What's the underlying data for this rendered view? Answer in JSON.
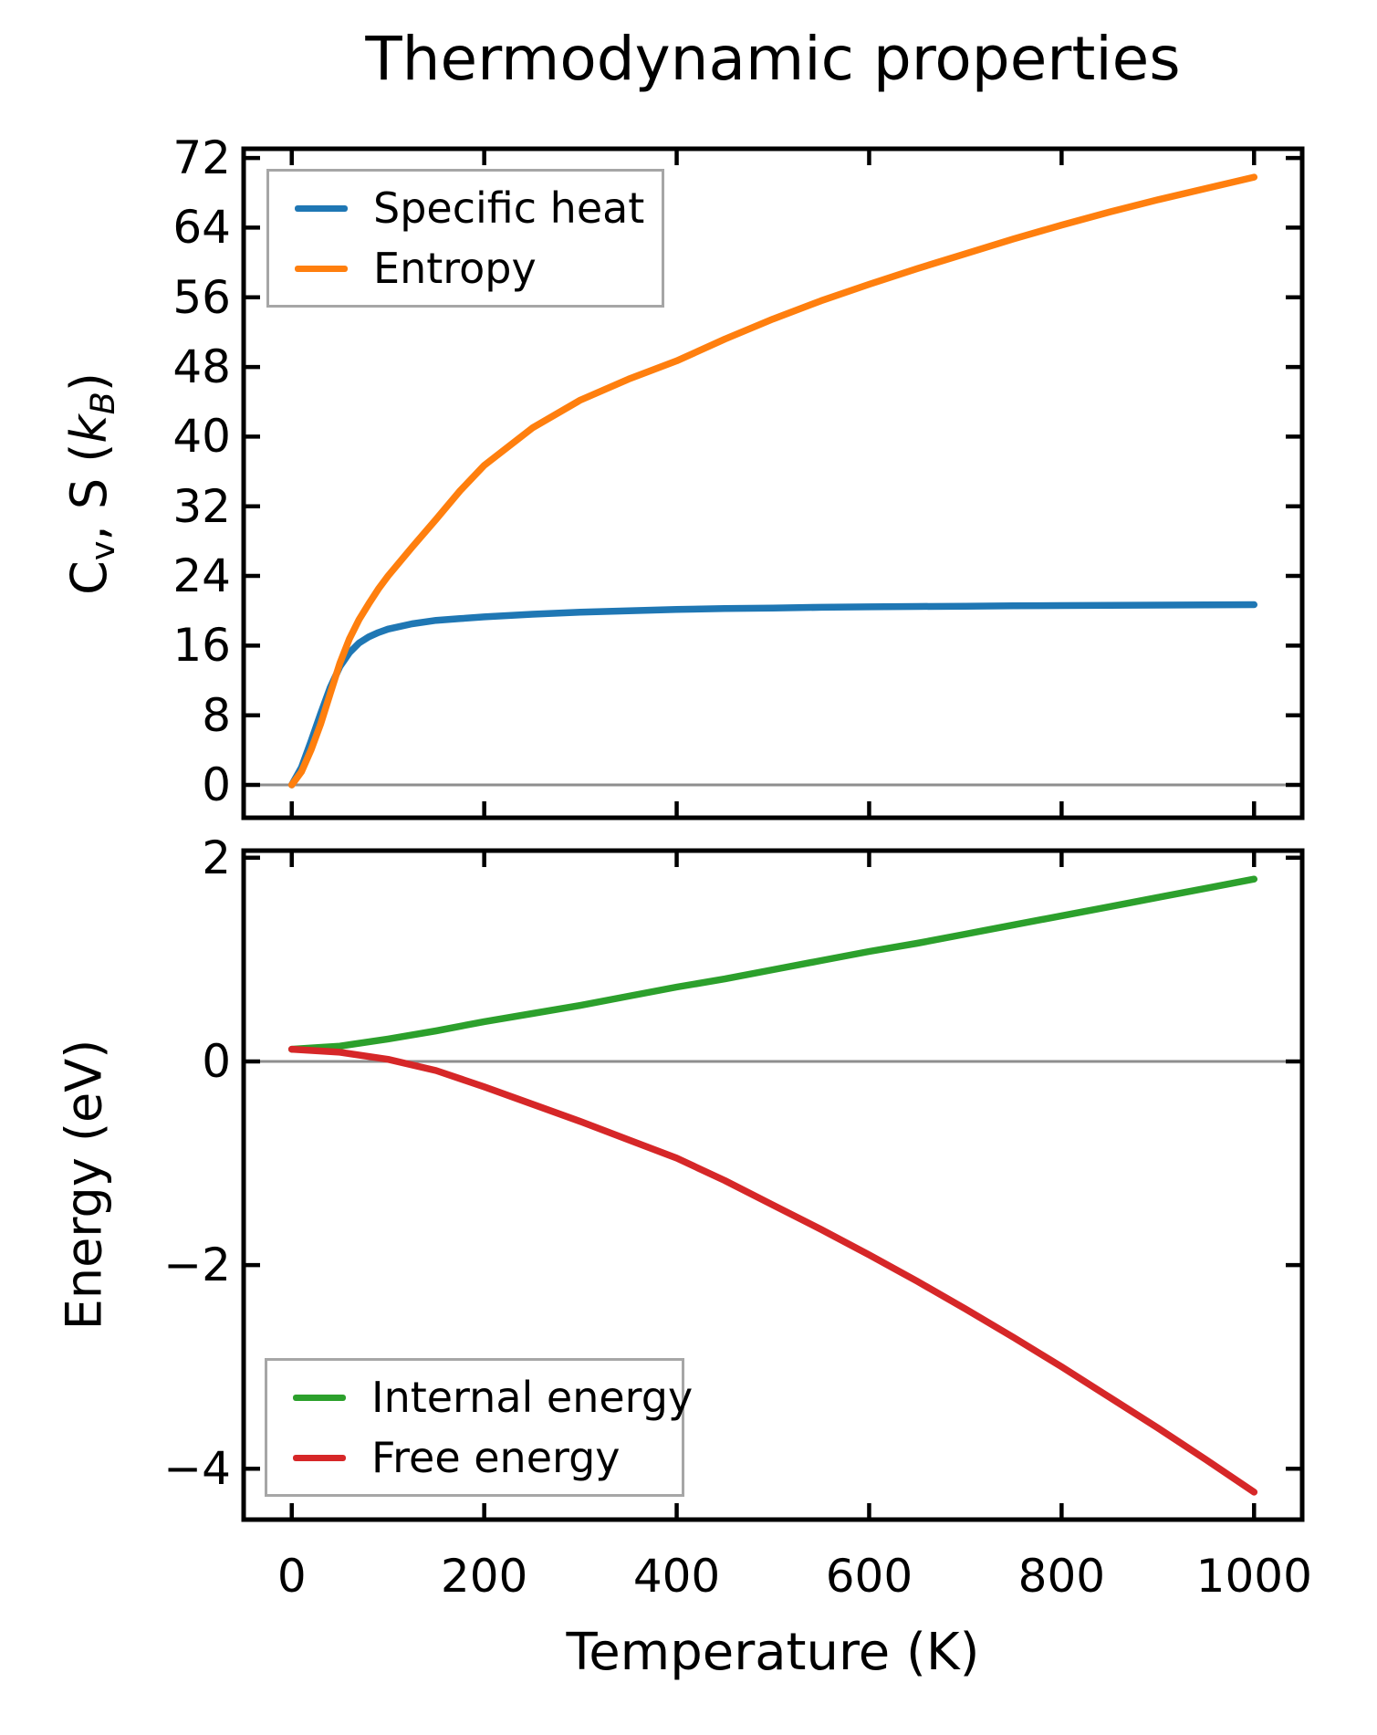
{
  "figure": {
    "title": "Thermodynamic properties",
    "background": "#ffffff",
    "text_color": "#000000",
    "spine_color": "#000000",
    "zero_line_color": "#8e8e8e"
  },
  "chart_data": [
    {
      "type": "line",
      "title": "Thermodynamic properties",
      "xlabel": "",
      "ylabel": "Cv, S (kB)",
      "ylabel_rich": [
        {
          "t": "C"
        },
        {
          "t": "v",
          "sub": true
        },
        {
          "t": ", S ("
        },
        {
          "t": "k",
          "i": true
        },
        {
          "t": "B",
          "sub": true,
          "i": true
        },
        {
          "t": ")"
        }
      ],
      "xlim": [
        -50,
        1050
      ],
      "ylim": [
        -3.77,
        73.06
      ],
      "x_ticks": [
        0,
        200,
        400,
        600,
        800,
        1000
      ],
      "show_x_tick_labels": false,
      "y_ticks": [
        0,
        8,
        16,
        24,
        32,
        40,
        48,
        56,
        64,
        72
      ],
      "zero_line": true,
      "grid": false,
      "legend": {
        "position": "upper-left"
      },
      "x": [
        0,
        10,
        20,
        30,
        40,
        50,
        60,
        70,
        80,
        90,
        100,
        125,
        150,
        175,
        200,
        250,
        300,
        350,
        400,
        450,
        500,
        550,
        600,
        650,
        700,
        750,
        800,
        850,
        900,
        950,
        1000
      ],
      "series": [
        {
          "name": "Specific heat",
          "color": "#1f77b4",
          "values": [
            0,
            2.0,
            5.0,
            8.2,
            11.2,
            13.6,
            15.2,
            16.3,
            17.0,
            17.5,
            17.9,
            18.5,
            18.9,
            19.1,
            19.3,
            19.6,
            19.85,
            20.0,
            20.15,
            20.25,
            20.32,
            20.4,
            20.45,
            20.5,
            20.53,
            20.57,
            20.6,
            20.63,
            20.65,
            20.68,
            20.7
          ]
        },
        {
          "name": "Entropy",
          "color": "#ff7f0e",
          "values": [
            0,
            1.5,
            4.0,
            7.0,
            10.5,
            14.0,
            16.8,
            19.0,
            20.8,
            22.5,
            24.0,
            27.3,
            30.5,
            33.8,
            36.7,
            41.0,
            44.2,
            46.6,
            48.7,
            51.2,
            53.5,
            55.6,
            57.5,
            59.3,
            61.0,
            62.7,
            64.3,
            65.8,
            67.2,
            68.5,
            69.8
          ]
        }
      ]
    },
    {
      "type": "line",
      "title": "",
      "xlabel": "Temperature (K)",
      "ylabel": "Energy (eV)",
      "xlim": [
        -50,
        1050
      ],
      "ylim": [
        -4.5,
        2.07
      ],
      "x_ticks": [
        0,
        200,
        400,
        600,
        800,
        1000
      ],
      "show_x_tick_labels": true,
      "y_ticks": [
        -4,
        -2,
        0,
        2
      ],
      "zero_line": true,
      "grid": false,
      "legend": {
        "position": "lower-left"
      },
      "x": [
        0,
        50,
        100,
        150,
        200,
        250,
        300,
        350,
        400,
        450,
        500,
        550,
        600,
        650,
        700,
        750,
        800,
        850,
        900,
        950,
        1000
      ],
      "series": [
        {
          "name": "Internal energy",
          "color": "#2ca02c",
          "values": [
            0.12,
            0.15,
            0.22,
            0.3,
            0.39,
            0.47,
            0.55,
            0.64,
            0.73,
            0.81,
            0.9,
            0.99,
            1.08,
            1.16,
            1.25,
            1.34,
            1.43,
            1.52,
            1.61,
            1.7,
            1.79
          ]
        },
        {
          "name": "Free energy",
          "color": "#d62728",
          "values": [
            0.12,
            0.09,
            0.02,
            -0.09,
            -0.25,
            -0.42,
            -0.59,
            -0.77,
            -0.95,
            -1.17,
            -1.41,
            -1.65,
            -1.9,
            -2.16,
            -2.43,
            -2.71,
            -3.0,
            -3.3,
            -3.6,
            -3.91,
            -4.23
          ]
        }
      ]
    }
  ]
}
